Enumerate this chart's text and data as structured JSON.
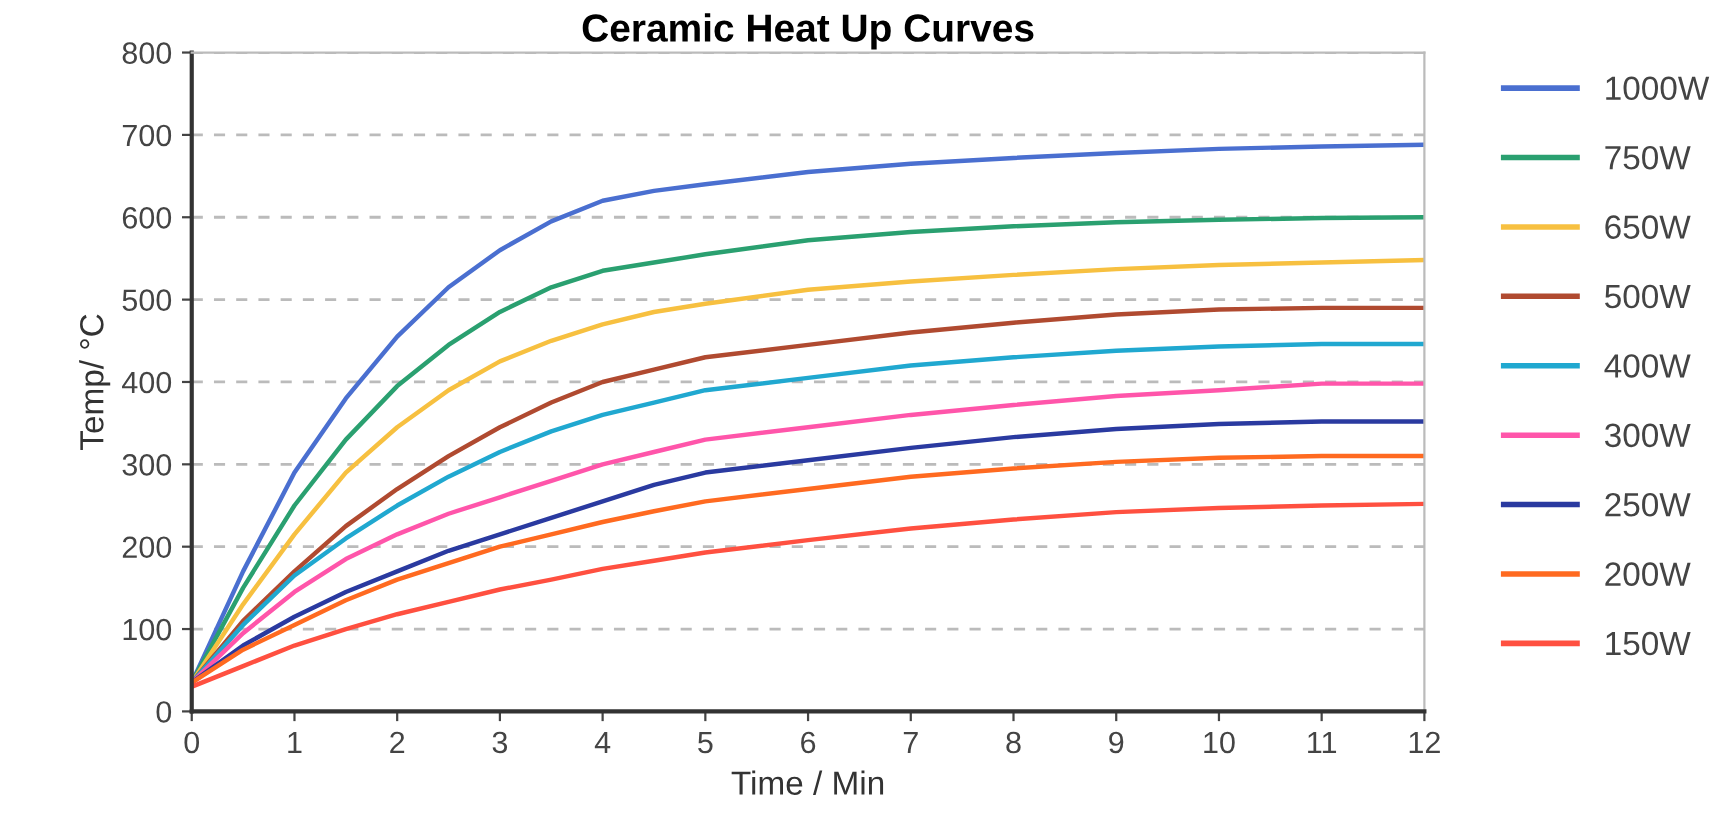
{
  "chart_data": {
    "type": "line",
    "title": "Ceramic Heat Up Curves",
    "xlabel": "Time / Min",
    "ylabel": "Temp/ °C",
    "x": [
      0,
      0.5,
      1,
      1.5,
      2,
      2.5,
      3,
      3.5,
      4,
      4.5,
      5,
      6,
      7,
      8,
      9,
      10,
      11,
      12
    ],
    "xlim": [
      0,
      12
    ],
    "xticks": [
      0,
      1,
      2,
      3,
      4,
      5,
      6,
      7,
      8,
      9,
      10,
      11,
      12
    ],
    "ylim": [
      0,
      800
    ],
    "yticks": [
      0,
      100,
      200,
      300,
      400,
      500,
      600,
      700,
      800
    ],
    "grid": "y",
    "legend": "right",
    "marker": "none",
    "line_style": "solid",
    "series": [
      {
        "name": "1000W",
        "color": "#4a6fd0",
        "values": [
          35,
          170,
          290,
          380,
          455,
          515,
          560,
          595,
          620,
          632,
          640,
          655,
          665,
          672,
          678,
          683,
          686,
          688
        ]
      },
      {
        "name": "750W",
        "color": "#2aa070",
        "values": [
          35,
          150,
          250,
          330,
          395,
          445,
          485,
          515,
          535,
          545,
          555,
          572,
          582,
          589,
          594,
          597,
          599,
          600
        ]
      },
      {
        "name": "650W",
        "color": "#f7c040",
        "values": [
          35,
          130,
          215,
          290,
          345,
          390,
          425,
          450,
          470,
          485,
          495,
          512,
          522,
          530,
          537,
          542,
          545,
          548
        ]
      },
      {
        "name": "500W",
        "color": "#b04a30",
        "values": [
          35,
          110,
          170,
          225,
          270,
          310,
          345,
          375,
          400,
          415,
          430,
          445,
          460,
          472,
          482,
          488,
          490,
          490
        ]
      },
      {
        "name": "400W",
        "color": "#20a8d0",
        "values": [
          35,
          105,
          165,
          210,
          250,
          285,
          315,
          340,
          360,
          375,
          390,
          405,
          420,
          430,
          438,
          443,
          446,
          446
        ]
      },
      {
        "name": "300W",
        "color": "#ff55aa",
        "values": [
          35,
          95,
          145,
          185,
          215,
          240,
          260,
          280,
          300,
          315,
          330,
          345,
          360,
          372,
          383,
          390,
          398,
          398
        ]
      },
      {
        "name": "250W",
        "color": "#2a3aa0",
        "values": [
          35,
          80,
          115,
          145,
          170,
          195,
          215,
          235,
          255,
          275,
          290,
          305,
          320,
          333,
          343,
          349,
          352,
          352
        ]
      },
      {
        "name": "200W",
        "color": "#ff6a20",
        "values": [
          35,
          75,
          105,
          135,
          160,
          180,
          200,
          215,
          230,
          243,
          255,
          270,
          285,
          295,
          303,
          308,
          310,
          310
        ]
      },
      {
        "name": "150W",
        "color": "#ff5040",
        "values": [
          30,
          55,
          80,
          100,
          118,
          133,
          148,
          160,
          173,
          183,
          193,
          208,
          222,
          233,
          242,
          247,
          250,
          252
        ]
      }
    ]
  }
}
